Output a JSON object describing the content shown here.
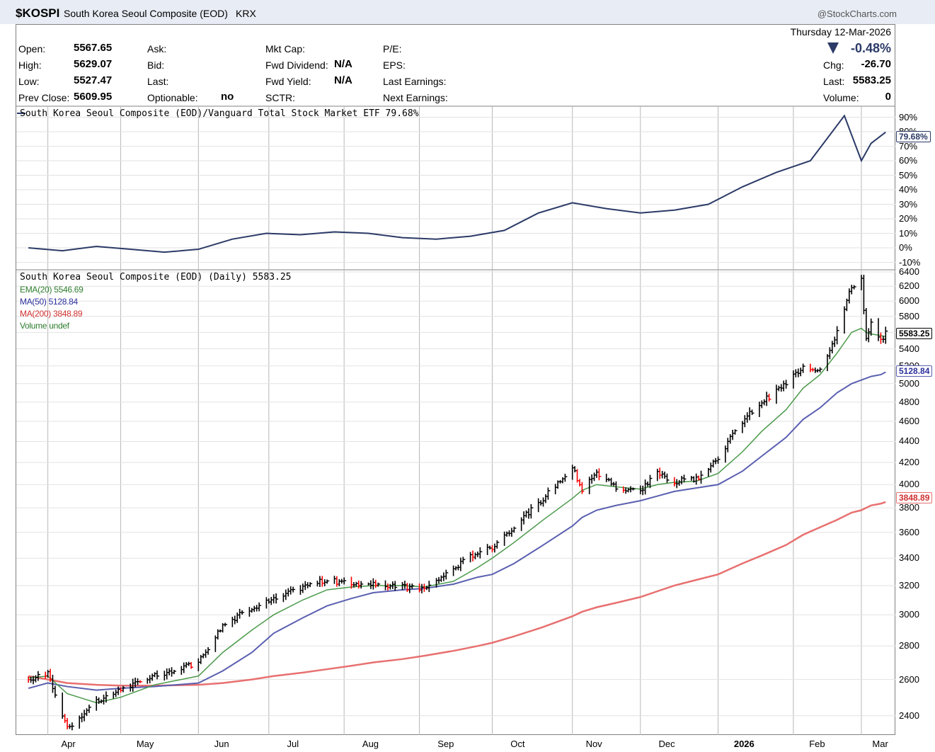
{
  "header": {
    "symbol": "$KOSPI",
    "name": "South Korea Seoul Composite (EOD)",
    "exchange": "KRX",
    "credit": "@StockCharts.com",
    "date": "Thursday  12-Mar-2026"
  },
  "quote": {
    "open_label": "Open:",
    "open": "5567.65",
    "high_label": "High:",
    "high": "5629.07",
    "low_label": "Low:",
    "low": "5527.47",
    "prev_label": "Prev Close:",
    "prev": "5609.95",
    "ask_label": "Ask:",
    "bid_label": "Bid:",
    "last_label2": "Last:",
    "optionable_label": "Optionable:",
    "optionable": "no",
    "mktcap_label": "Mkt Cap:",
    "fwd_div_label": "Fwd Dividend:",
    "fwd_div": "N/A",
    "fwd_yield_label": "Fwd Yield:",
    "fwd_yield": "N/A",
    "sctr_label": "SCTR:",
    "pe_label": "P/E:",
    "eps_label": "EPS:",
    "last_earn_label": "Last Earnings:",
    "next_earn_label": "Next Earnings:",
    "pct_change": "-0.48%",
    "chg_label": "Chg:",
    "chg": "-26.70",
    "last_label": "Last:",
    "last": "5583.25",
    "volume_label": "Volume:",
    "volume": "0"
  },
  "ratio_panel": {
    "legend": "South Korea Seoul Composite (EOD)/Vanguard Total Stock Market ETF 79.68%",
    "current_tag": "79.68%",
    "y_labels": [
      "90%",
      "80%",
      "70%",
      "60%",
      "50%",
      "40%",
      "30%",
      "20%",
      "10%",
      "0%",
      "-10%"
    ]
  },
  "price_panel": {
    "legend": "South Korea Seoul Composite (EOD) (Daily) 5583.25",
    "ema20": "EMA(20) 5546.69",
    "ma50": "MA(50) 5128.84",
    "ma200": "MA(200) 3848.89",
    "volume": "Volume undef",
    "tag_last": "5583.25",
    "tag_ma50": "5128.84",
    "tag_ma200": "3848.89",
    "y_labels": [
      "6400",
      "6200",
      "6000",
      "5800",
      "5600",
      "5400",
      "5200",
      "5000",
      "4800",
      "4600",
      "4400",
      "4200",
      "4000",
      "3800",
      "3600",
      "3400",
      "3200",
      "3000",
      "2800",
      "2600",
      "2400"
    ]
  },
  "x_labels": [
    "Apr",
    "May",
    "Jun",
    "Jul",
    "Aug",
    "Sep",
    "Oct",
    "Nov",
    "Dec",
    "2026",
    "Feb",
    "Mar"
  ],
  "colors": {
    "ratio_line": "#2b3a67",
    "ema20": "#4a9a4a",
    "ma50": "#5a5fb0",
    "ma200": "#e87070",
    "up_bar": "#000000",
    "down_bar": "#ff0000",
    "grid": "#cccccc"
  },
  "chart_data": [
    {
      "type": "line",
      "series": [
        {
          "name": "South Korea Seoul Composite (EOD)/Vanguard Total Stock Market ETF",
          "x": [
            "2025-03-24",
            "2025-04-07",
            "2025-04-21",
            "2025-05-05",
            "2025-05-19",
            "2025-06-02",
            "2025-06-16",
            "2025-06-30",
            "2025-07-14",
            "2025-07-28",
            "2025-08-11",
            "2025-08-25",
            "2025-09-08",
            "2025-09-22",
            "2025-10-06",
            "2025-10-20",
            "2025-11-03",
            "2025-11-17",
            "2025-12-01",
            "2025-12-15",
            "2025-12-29",
            "2026-01-12",
            "2026-01-26",
            "2026-02-09",
            "2026-02-23",
            "2026-03-02",
            "2026-03-06",
            "2026-03-12"
          ],
          "values": [
            0,
            -2,
            1,
            -1,
            -3,
            -1,
            6,
            10,
            9,
            11,
            10,
            7,
            6,
            8,
            12,
            24,
            31,
            27,
            24,
            26,
            30,
            42,
            52,
            60,
            91,
            60,
            72,
            79.68
          ]
        }
      ],
      "ylim": [
        -10,
        95
      ]
    },
    {
      "type": "line",
      "title": "South Korea Seoul Composite (EOD) (Daily)",
      "x": [
        "2025-03-24",
        "2025-04-01",
        "2025-04-09",
        "2025-04-21",
        "2025-05-01",
        "2025-05-15",
        "2025-06-02",
        "2025-06-12",
        "2025-06-24",
        "2025-07-03",
        "2025-07-15",
        "2025-07-25",
        "2025-08-04",
        "2025-08-13",
        "2025-08-25",
        "2025-09-03",
        "2025-09-15",
        "2025-09-25",
        "2025-10-01",
        "2025-10-10",
        "2025-10-22",
        "2025-11-03",
        "2025-11-07",
        "2025-11-13",
        "2025-11-21",
        "2025-12-01",
        "2025-12-08",
        "2025-12-15",
        "2025-12-24",
        "2026-01-02",
        "2026-01-12",
        "2026-01-20",
        "2026-01-30",
        "2026-02-06",
        "2026-02-13",
        "2026-02-20",
        "2026-02-26",
        "2026-03-02",
        "2026-03-04",
        "2026-03-06",
        "2026-03-10",
        "2026-03-12"
      ],
      "series": [
        {
          "name": "South Korea Seoul Composite (EOD) (Daily)",
          "values": [
            2600,
            2640,
            2330,
            2480,
            2540,
            2620,
            2700,
            2930,
            3050,
            3100,
            3190,
            3240,
            3210,
            3220,
            3190,
            3170,
            3320,
            3450,
            3480,
            3650,
            3880,
            4150,
            3960,
            4100,
            3980,
            3950,
            4100,
            4030,
            4050,
            4250,
            4600,
            4800,
            5000,
            5200,
            5150,
            5600,
            6200,
            6300,
            5500,
            5700,
            5500,
            5583.25
          ]
        },
        {
          "name": "EMA(20)",
          "values": [
            2610,
            2620,
            2520,
            2470,
            2500,
            2570,
            2620,
            2760,
            2900,
            3000,
            3100,
            3170,
            3190,
            3200,
            3200,
            3190,
            3230,
            3330,
            3400,
            3520,
            3700,
            3880,
            3950,
            4000,
            3980,
            3960,
            4000,
            4020,
            4030,
            4100,
            4300,
            4500,
            4720,
            4950,
            5100,
            5350,
            5600,
            5650,
            5600,
            5580,
            5560,
            5546.69
          ]
        },
        {
          "name": "MA(50)",
          "values": [
            2550,
            2580,
            2560,
            2540,
            2550,
            2560,
            2580,
            2650,
            2760,
            2880,
            2980,
            3060,
            3110,
            3150,
            3170,
            3180,
            3210,
            3260,
            3280,
            3360,
            3500,
            3650,
            3720,
            3780,
            3820,
            3860,
            3900,
            3940,
            3970,
            4000,
            4120,
            4260,
            4440,
            4620,
            4740,
            4900,
            5000,
            5040,
            5060,
            5080,
            5100,
            5128.84
          ]
        },
        {
          "name": "MA(200)",
          "values": [
            2620,
            2600,
            2580,
            2570,
            2565,
            2565,
            2570,
            2580,
            2600,
            2620,
            2640,
            2660,
            2680,
            2700,
            2720,
            2740,
            2770,
            2800,
            2820,
            2860,
            2920,
            2990,
            3020,
            3050,
            3080,
            3120,
            3160,
            3200,
            3240,
            3280,
            3360,
            3420,
            3500,
            3580,
            3640,
            3700,
            3760,
            3780,
            3800,
            3820,
            3835,
            3848.89
          ]
        }
      ],
      "ylabel": "",
      "ylim": [
        2300,
        6400
      ]
    }
  ]
}
